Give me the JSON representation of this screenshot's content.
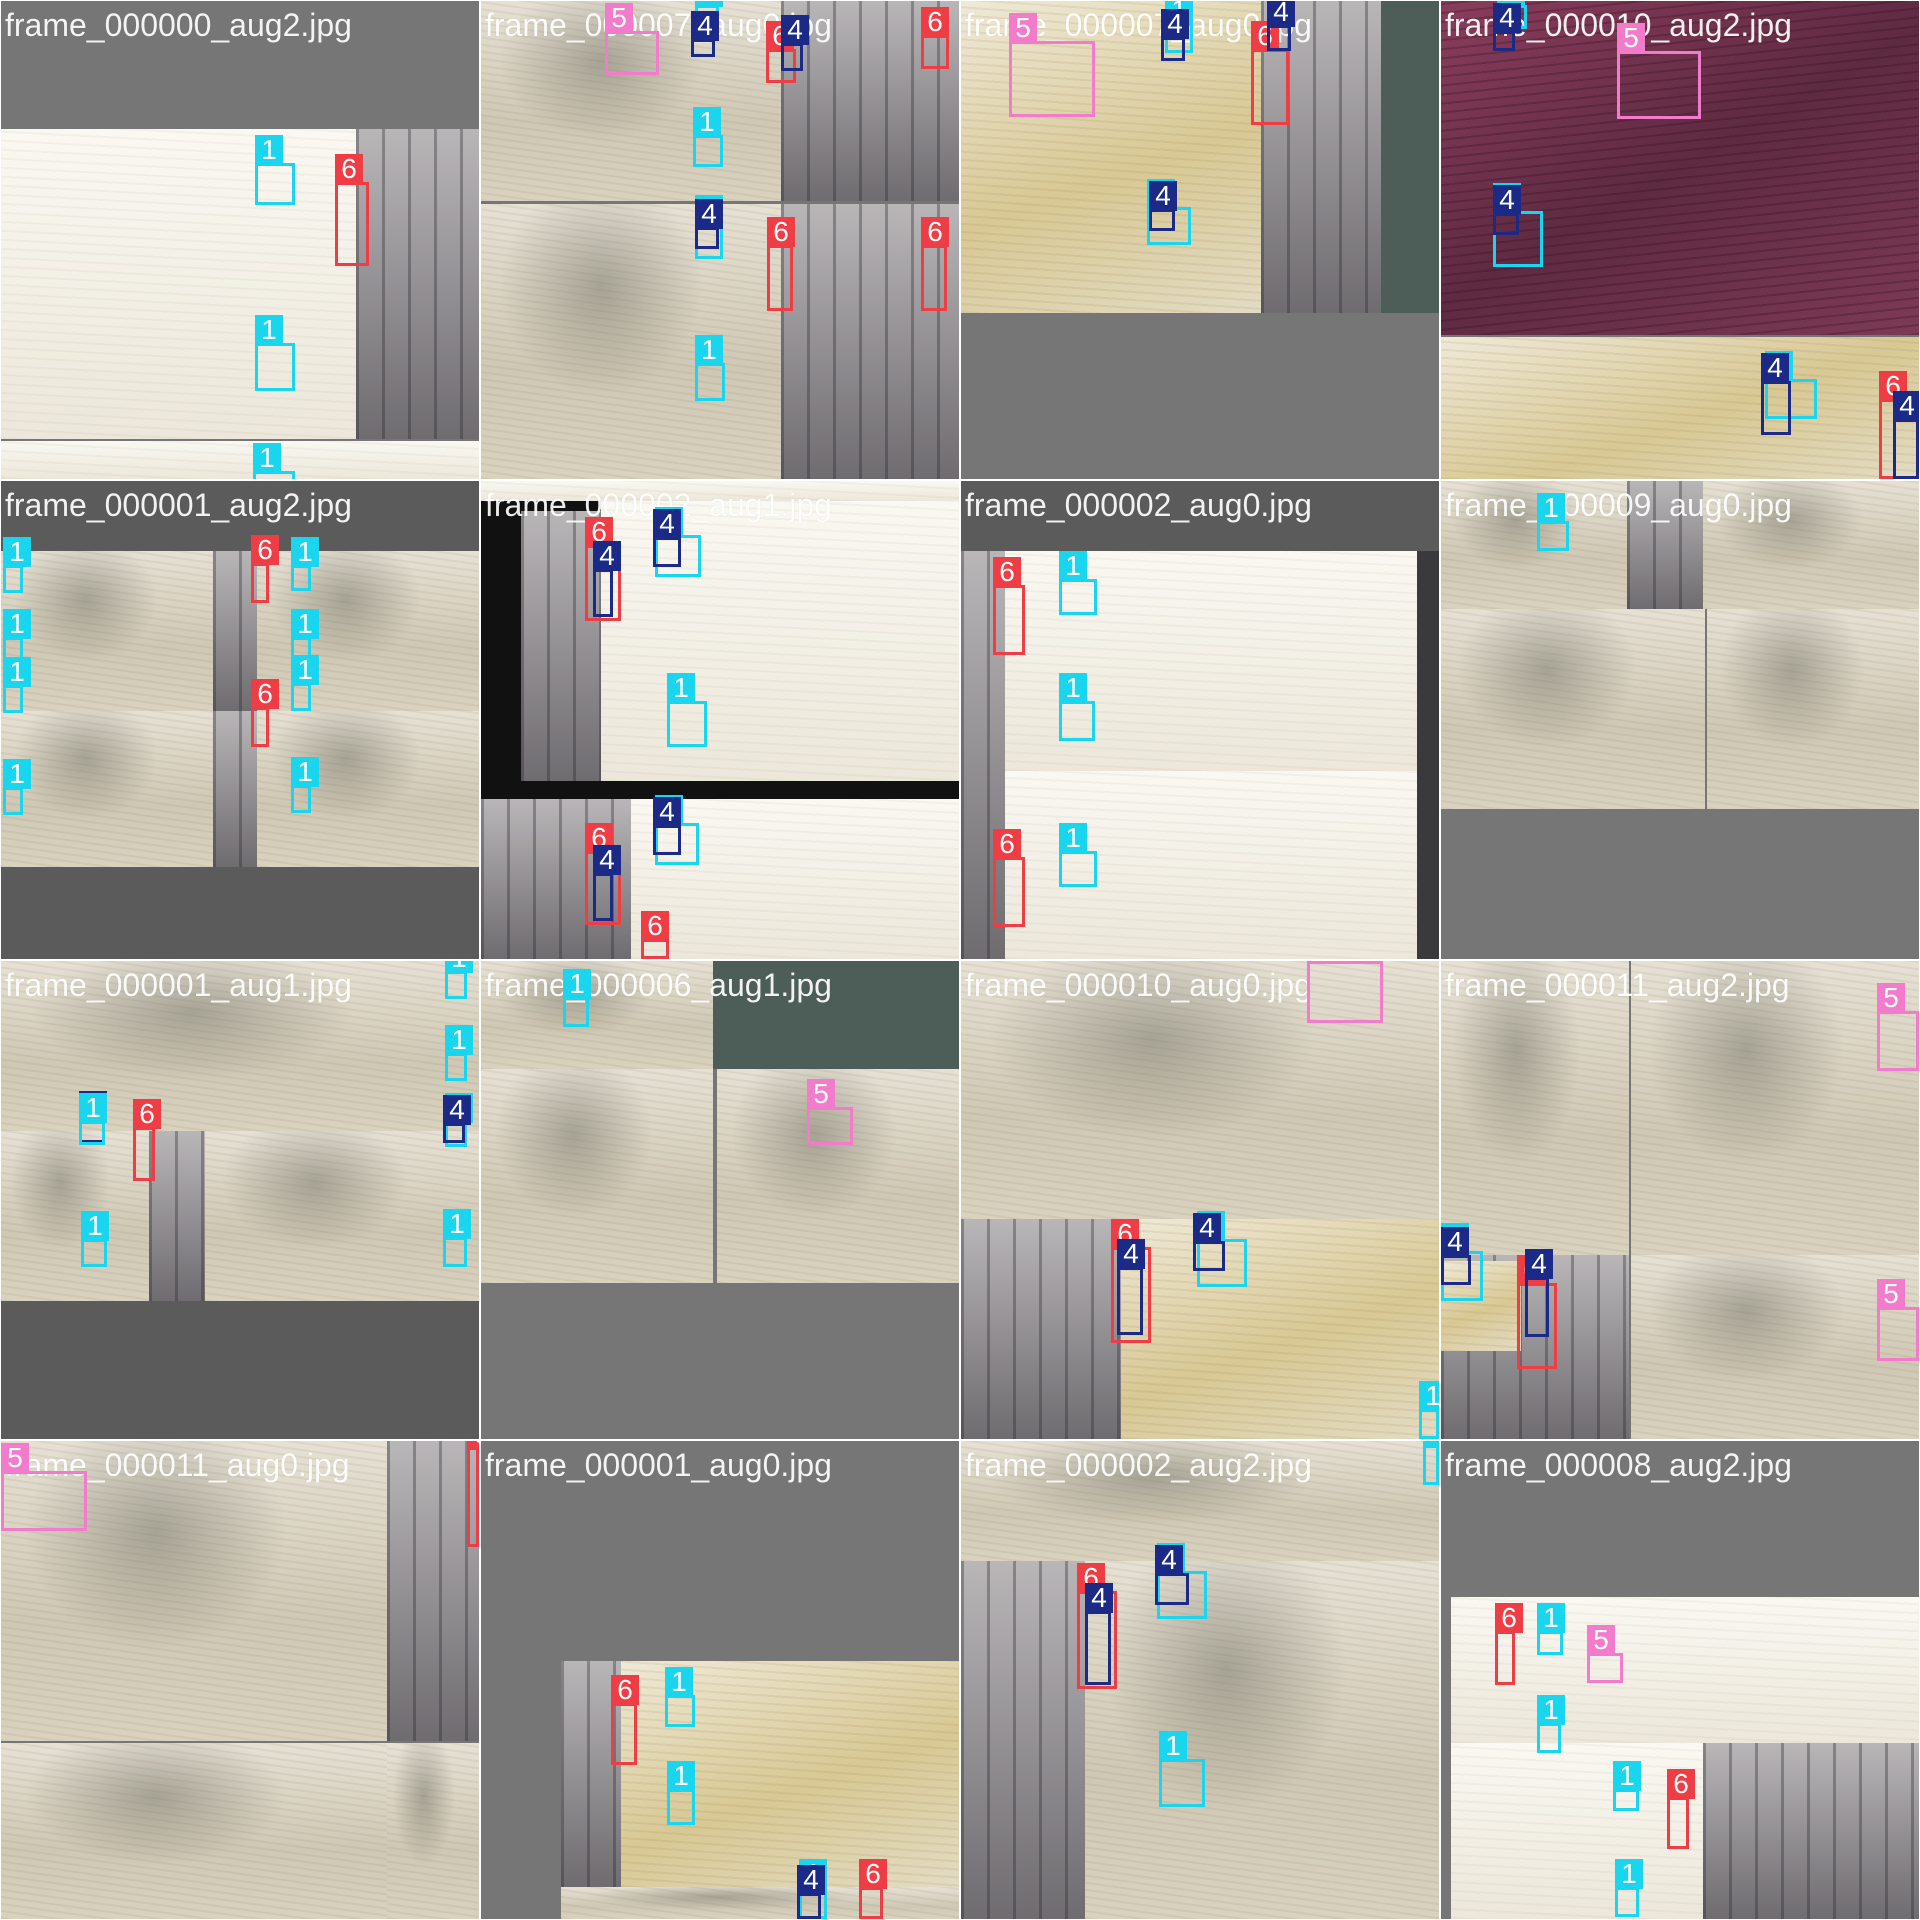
{
  "colors": {
    "class_1": "#19d6ee",
    "class_4": "#1a2a86",
    "class_5": "#f27bcb",
    "class_6": "#ee3d44",
    "padding": "#767676"
  },
  "tiles": [
    {
      "label": "frame_000000_aug2.jpg",
      "tags": [
        "1",
        "6",
        "1",
        "1"
      ]
    },
    {
      "label": "frame_000007_aug0.jpg",
      "tags": [
        "1",
        "4",
        "5",
        "6",
        "4",
        "6",
        "1",
        "1",
        "4",
        "6",
        "6",
        "1"
      ]
    },
    {
      "label": "frame_000007_aug0.jpg",
      "tags": [
        "5",
        "1",
        "4",
        "6",
        "4",
        "1",
        "4"
      ]
    },
    {
      "label": "frame_000010_aug2.jpg",
      "tags": [
        "1",
        "4",
        "5",
        "1",
        "4",
        "1",
        "4",
        "6",
        "4"
      ]
    },
    {
      "label": "frame_000001_aug2.jpg",
      "tags": [
        "1",
        "6",
        "1",
        "1",
        "1",
        "1",
        "6",
        "1",
        "1",
        "1"
      ]
    },
    {
      "label": "frame_000002_aug1.jpg",
      "tags": [
        "6",
        "4",
        "1",
        "4",
        "1",
        "6",
        "4",
        "1",
        "4",
        "6"
      ]
    },
    {
      "label": "frame_000002_aug0.jpg",
      "tags": [
        "6",
        "1",
        "1",
        "6",
        "1"
      ]
    },
    {
      "label": "frame_000009_aug0.jpg",
      "tags": [
        "1"
      ]
    },
    {
      "label": "frame_000001_aug1.jpg",
      "tags": [
        "1",
        "1",
        "4",
        "1",
        "6",
        "1",
        "4",
        "1",
        "1"
      ]
    },
    {
      "label": "frame_000006_aug1.jpg",
      "tags": [
        "1",
        "5"
      ]
    },
    {
      "label": "frame_000010_aug0.jpg",
      "tags": [
        "5",
        "6",
        "4",
        "1",
        "4",
        "1"
      ]
    },
    {
      "label": "frame_000011_aug2.jpg",
      "tags": [
        "5",
        "1",
        "4",
        "6",
        "4",
        "5"
      ]
    },
    {
      "label": "frame_000011_aug0.jpg",
      "tags": [
        "5",
        "6"
      ]
    },
    {
      "label": "frame_000001_aug0.jpg",
      "tags": [
        "6",
        "1",
        "1",
        "1",
        "4",
        "6"
      ]
    },
    {
      "label": "frame_000002_aug2.jpg",
      "tags": [
        "1",
        "6",
        "4",
        "1",
        "4",
        "1"
      ]
    },
    {
      "label": "frame_000008_aug2.jpg",
      "tags": [
        "6",
        "1",
        "5",
        "1",
        "1",
        "6",
        "1"
      ]
    }
  ]
}
